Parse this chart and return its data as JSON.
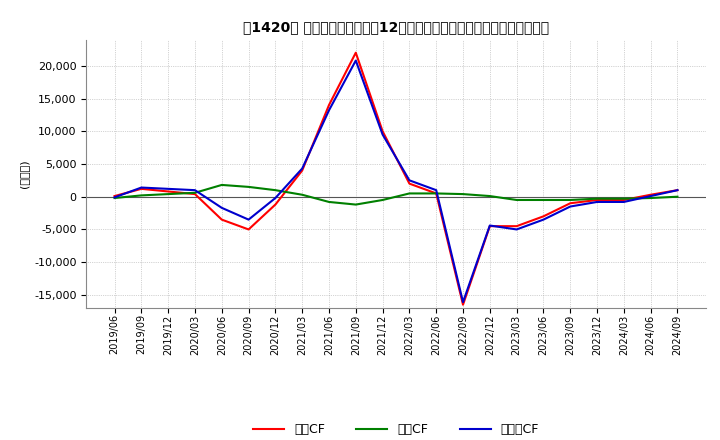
{
  "title": "【1420】 キャッシュフローの12か月移動合計の対前年同期増減額の推移",
  "ylabel": "(百万円)",
  "ylim": [
    -17000,
    24000
  ],
  "yticks": [
    -15000,
    -10000,
    -5000,
    0,
    5000,
    10000,
    15000,
    20000
  ],
  "dates": [
    "2019/06",
    "2019/09",
    "2019/12",
    "2020/03",
    "2020/06",
    "2020/09",
    "2020/12",
    "2021/03",
    "2021/06",
    "2021/09",
    "2021/12",
    "2022/03",
    "2022/06",
    "2022/09",
    "2022/12",
    "2023/03",
    "2023/06",
    "2023/09",
    "2023/12",
    "2024/03",
    "2024/06",
    "2024/09"
  ],
  "eigyo_cf": [
    100,
    1200,
    800,
    400,
    -3500,
    -5000,
    -1200,
    4000,
    14000,
    22000,
    10000,
    2000,
    500,
    -16500,
    -4500,
    -4500,
    -3000,
    -1000,
    -500,
    -500,
    300,
    1000
  ],
  "toshi_cf": [
    -200,
    200,
    400,
    600,
    1800,
    1500,
    1000,
    300,
    -800,
    -1200,
    -500,
    500,
    500,
    400,
    100,
    -500,
    -500,
    -500,
    -300,
    -300,
    -200,
    0
  ],
  "free_cf": [
    -100,
    1400,
    1200,
    1000,
    -1700,
    -3500,
    -200,
    4300,
    13200,
    20800,
    9500,
    2500,
    1000,
    -16100,
    -4400,
    -5000,
    -3500,
    -1500,
    -800,
    -800,
    100,
    1000
  ],
  "eigyo_color": "#ff0000",
  "toshi_color": "#008000",
  "free_color": "#0000cd",
  "bg_color": "#ffffff",
  "grid_color": "#aaaaaa",
  "line_width": 1.5,
  "legend_labels": [
    "営業CF",
    "投資CF",
    "フリーCF"
  ]
}
